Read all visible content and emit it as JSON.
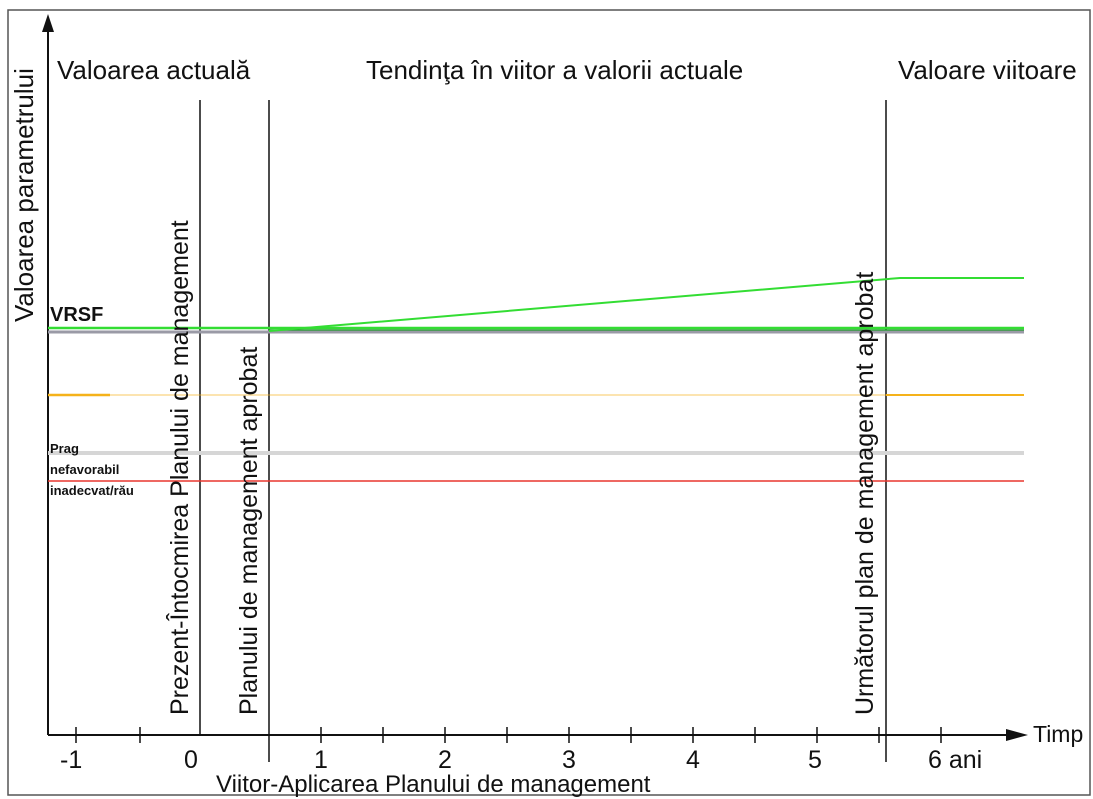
{
  "y_axis": {
    "title": "Valoarea parametrului"
  },
  "x_axis": {
    "end_label": "Timp",
    "bottom_caption": "Viitor-Aplicarea Planului de management",
    "tick_labels": [
      {
        "value": -1,
        "label": "-1"
      },
      {
        "value": 0,
        "label": "0"
      },
      {
        "value": 1,
        "label": "1"
      },
      {
        "value": 2,
        "label": "2"
      },
      {
        "value": 3,
        "label": "3"
      },
      {
        "value": 4,
        "label": "4"
      },
      {
        "value": 5,
        "label": "5"
      },
      {
        "value": 6,
        "label": "6 ani"
      }
    ]
  },
  "sections": {
    "current": "Valoarea actuală",
    "trend": "Tendinţa în viitor a valorii actuale",
    "future": "Valoare viitoare"
  },
  "phase_markers": {
    "present": "Prezent-Întocmirea Planului de management",
    "approved": "Planului de management aprobat",
    "next": "Următorul plan de management aprobat"
  },
  "level_labels": {
    "vrsf": "VRSF",
    "threshold_line1": "Prag",
    "threshold_line2": "nefavorabil",
    "threshold_line3": "inadecvat/rău"
  },
  "colors": {
    "axis": "#111111",
    "green": "#33dd33",
    "dark_green": "#1f9a2a",
    "gray": "#9a9aa6",
    "light_gray": "#d6d6d6",
    "orange": "#f5b21a",
    "red": "#e8362e"
  }
}
